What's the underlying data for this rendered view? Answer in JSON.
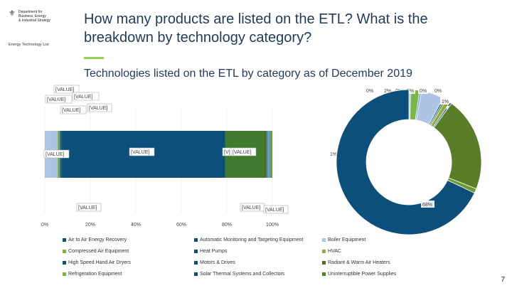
{
  "header": {
    "logo_lines": [
      "Department for",
      "Business, Energy",
      "& Industrial Strategy"
    ],
    "logo_sub": "Energy Technology List",
    "title": "How many products are listed on the ETL? What is the breakdown by technology category?",
    "subtitle": "Technologies listed on the ETL by category as of December 2019"
  },
  "page_number": "7",
  "chart_data": [
    {
      "type": "bar",
      "orientation": "horizontal-stacked-100",
      "xticks": [
        "0%",
        "20%",
        "40%",
        "60%",
        "80%",
        "100%"
      ],
      "xlim": [
        0,
        100
      ],
      "data_labels": [
        "[VALUE]",
        "[VALUE]",
        "[VALUE]",
        "[VALUE]",
        "[VALUE]",
        "[VALUE]",
        "[VALUE]",
        "[VALUE]",
        "[VALUE]",
        "[VALUE]",
        "[V]",
        "[VALUE]"
      ],
      "series": [
        {
          "name": "Air to Air Energy Recovery",
          "color": "#9dc3e6",
          "value": 0.3
        },
        {
          "name": "Boiler Equipment",
          "color": "#adc4e6",
          "value": 4.7
        },
        {
          "name": "HVAC",
          "color": "#8faa40",
          "value": 0.3
        },
        {
          "name": "Uninterruptible Power Supplies",
          "color": "#5a7d27",
          "value": 0.3
        },
        {
          "name": "Compressed Air Equipment",
          "color": "#7ab648",
          "value": 0.3
        },
        {
          "name": "Automatic Monitoring and Targeting Equipment",
          "color": "#0e5a88",
          "value": 0.5
        },
        {
          "name": "Motors & Drives",
          "color": "#0b4f7a",
          "value": 63.4
        },
        {
          "name": "Heat Pumps",
          "color": "#3f7a2e",
          "value": 15
        },
        {
          "name": "Radiant & Warm Air Heaters",
          "color": "#4f6f1f",
          "value": 1
        },
        {
          "name": "Solar Thermal Systems and Collectors",
          "color": "#1d5f8a",
          "value": 0.3
        },
        {
          "name": "High Speed Hand Air Dryers",
          "color": "#5b9bd5",
          "value": 1
        },
        {
          "name": "Refrigeration Equipment",
          "color": "#6e9a33",
          "value": 1
        }
      ]
    },
    {
      "type": "pie",
      "donut": true,
      "slices": [
        {
          "label": "0%",
          "value": 0.4,
          "color": "#9dc3e6"
        },
        {
          "label": "2%",
          "value": 2,
          "color": "#7ab648"
        },
        {
          "label": "0%",
          "value": 0.4,
          "color": "#5b9bd5"
        },
        {
          "label": "5%",
          "value": 5,
          "color": "#adc4e6"
        },
        {
          "label": "0%",
          "value": 0.4,
          "color": "#0e5a88"
        },
        {
          "label": "0%",
          "value": 0.4,
          "color": "#3f7a2e"
        },
        {
          "label": "1%",
          "value": 1,
          "color": "#8faa40"
        },
        {
          "label": "0%",
          "value": 0.4,
          "color": "#1d5f8a"
        },
        {
          "label": "21%",
          "value": 21,
          "color": "#5a7d27"
        },
        {
          "label": "1%",
          "value": 1,
          "color": "#6e9a33"
        },
        {
          "label": "68%",
          "value": 68,
          "color": "#0b4f7a"
        }
      ]
    }
  ],
  "legend": [
    {
      "label": "Air to Air Energy Recovery",
      "color": "#0b4f7a"
    },
    {
      "label": "Automatic Monitoring and Targeting Equipment",
      "color": "#0b4f7a"
    },
    {
      "label": "Boiler Equipment",
      "color": "#adc4e6"
    },
    {
      "label": "Compressed Air Equipment",
      "color": "#7ab648"
    },
    {
      "label": "Heat Pumps",
      "color": "#0b4f7a"
    },
    {
      "label": "HVAC",
      "color": "#8faa40"
    },
    {
      "label": "High Speed Hand Air Dryers",
      "color": "#0b4f7a"
    },
    {
      "label": "Motors & Drives",
      "color": "#0b4f7a"
    },
    {
      "label": "Radiant & Warm Air Heaters",
      "color": "#4f6f1f"
    },
    {
      "label": "Refrigeration Equipment",
      "color": "#7ab648"
    },
    {
      "label": "Solar Thermal Systems and Collectors",
      "color": "#0b4f7a"
    },
    {
      "label": "Uninterruptible Power Supplies",
      "color": "#5a7d27"
    }
  ]
}
